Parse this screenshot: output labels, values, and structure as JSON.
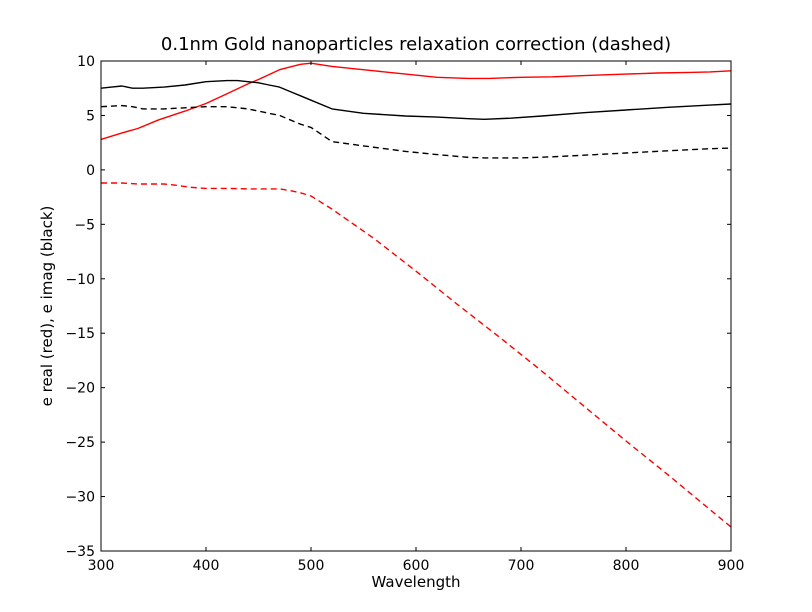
{
  "chart_data": {
    "type": "line",
    "title": "0.1nm Gold nanoparticles relaxation correction (dashed)",
    "xlabel": "Wavelength",
    "ylabel": "e real (red), e imag (black)",
    "xlim": [
      300,
      900
    ],
    "ylim": [
      -35,
      10
    ],
    "xticks": [
      300,
      400,
      500,
      600,
      700,
      800,
      900
    ],
    "yticks": [
      10,
      5,
      0,
      -5,
      -10,
      -15,
      -20,
      -25,
      -30,
      -35
    ],
    "grid": false,
    "series": [
      {
        "name": "e real",
        "color": "#ff0000",
        "dash": "solid",
        "x": [
          300,
          320,
          335,
          355,
          380,
          400,
          420,
          440,
          450,
          470,
          490,
          500,
          520,
          560,
          590,
          620,
          650,
          670,
          700,
          730,
          770,
          800,
          830,
          860,
          880,
          900
        ],
        "y": [
          2.8,
          3.4,
          3.8,
          4.6,
          5.4,
          6.1,
          7.0,
          7.9,
          8.3,
          9.2,
          9.7,
          9.8,
          9.5,
          9.1,
          8.8,
          8.5,
          8.4,
          8.4,
          8.5,
          8.55,
          8.7,
          8.8,
          8.9,
          8.95,
          9.0,
          9.1
        ]
      },
      {
        "name": "e imag",
        "color": "#000000",
        "dash": "solid",
        "x": [
          300,
          310,
          320,
          330,
          340,
          360,
          380,
          400,
          420,
          430,
          440,
          450,
          460,
          470,
          480,
          490,
          500,
          520,
          550,
          590,
          620,
          650,
          665,
          690,
          720,
          760,
          800,
          840,
          880,
          900
        ],
        "y": [
          7.5,
          7.6,
          7.7,
          7.5,
          7.5,
          7.6,
          7.8,
          8.1,
          8.2,
          8.2,
          8.1,
          8.0,
          7.8,
          7.6,
          7.2,
          6.8,
          6.4,
          5.6,
          5.2,
          4.95,
          4.85,
          4.7,
          4.65,
          4.75,
          4.95,
          5.25,
          5.5,
          5.75,
          5.95,
          6.05
        ]
      },
      {
        "name": "e real (relaxation corrected)",
        "color": "#ff0000",
        "dash": "dashed",
        "x": [
          300,
          320,
          335,
          350,
          360,
          370,
          385,
          400,
          420,
          440,
          460,
          470,
          480,
          490,
          500,
          520,
          560,
          600,
          640,
          680,
          720,
          760,
          800,
          840,
          880,
          900
        ],
        "y": [
          -1.2,
          -1.2,
          -1.3,
          -1.3,
          -1.3,
          -1.4,
          -1.6,
          -1.7,
          -1.7,
          -1.75,
          -1.75,
          -1.75,
          -1.9,
          -2.1,
          -2.4,
          -3.6,
          -6.3,
          -9.3,
          -12.4,
          -15.4,
          -18.5,
          -21.7,
          -24.9,
          -28.0,
          -31.2,
          -32.8
        ]
      },
      {
        "name": "e imag (relaxation corrected)",
        "color": "#000000",
        "dash": "dashed",
        "x": [
          300,
          320,
          330,
          340,
          360,
          380,
          400,
          420,
          430,
          440,
          460,
          470,
          480,
          490,
          500,
          520,
          550,
          590,
          620,
          650,
          665,
          700,
          730,
          760,
          800,
          840,
          880,
          900
        ],
        "y": [
          5.8,
          5.9,
          5.8,
          5.6,
          5.6,
          5.7,
          5.8,
          5.8,
          5.7,
          5.6,
          5.2,
          5.0,
          4.6,
          4.2,
          3.9,
          2.6,
          2.2,
          1.7,
          1.4,
          1.15,
          1.1,
          1.1,
          1.2,
          1.35,
          1.55,
          1.75,
          1.95,
          2.0
        ]
      }
    ]
  }
}
